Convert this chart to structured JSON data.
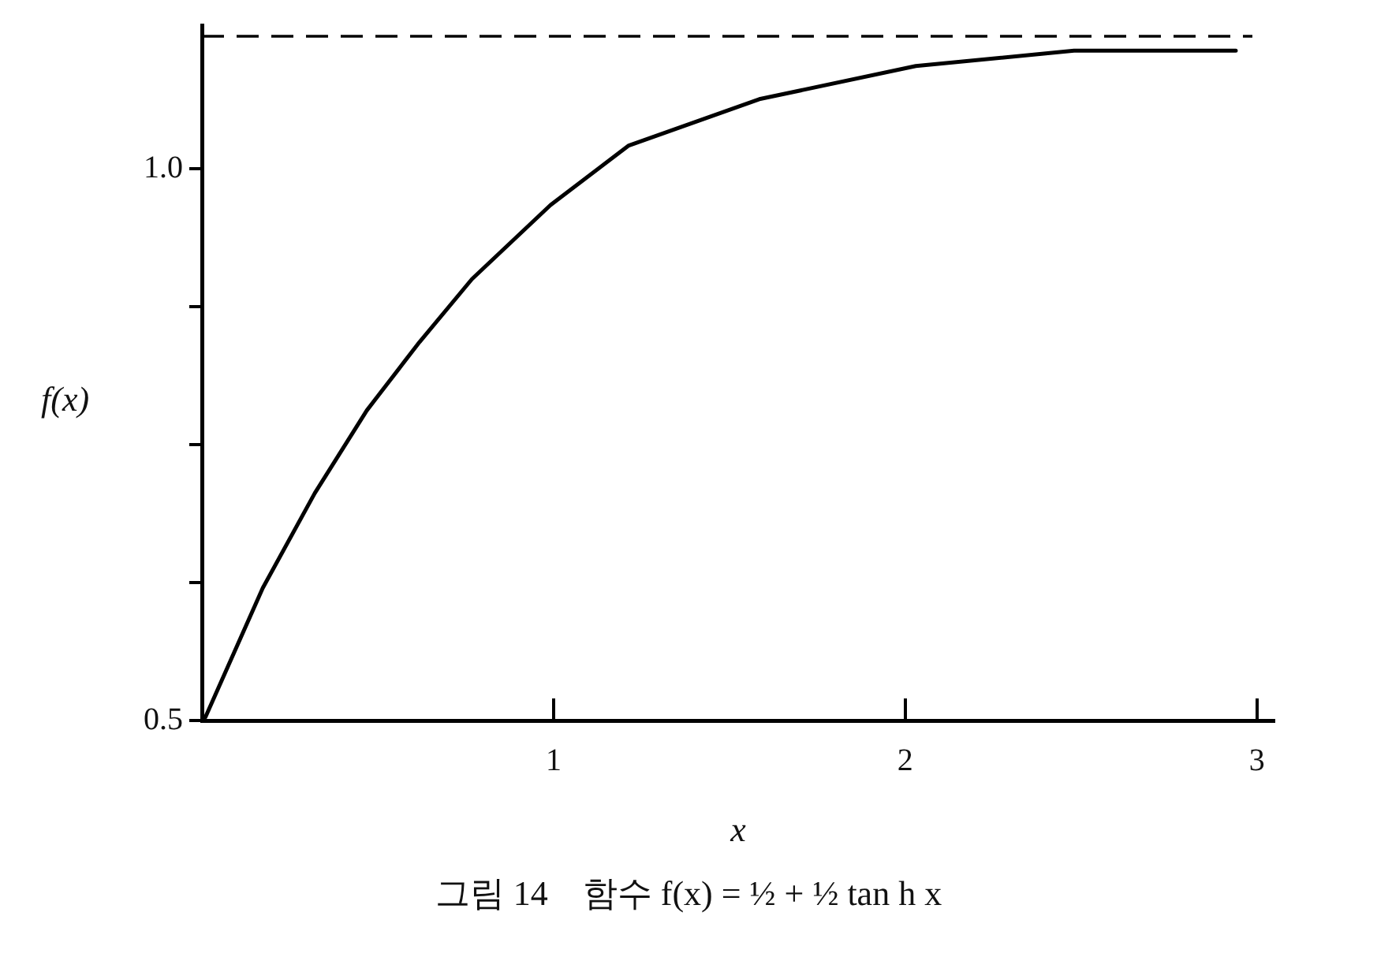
{
  "chart_data": {
    "type": "line",
    "title": "그림 14　함수 f(x) = ½ + ½ tan h x",
    "xlabel": "x",
    "ylabel": "f(x)",
    "x": [
      0,
      0.01,
      0.173,
      0.321,
      0.469,
      0.619,
      0.768,
      0.991,
      1.214,
      1.585,
      2.03,
      2.48,
      2.94
    ],
    "series": [
      {
        "color": "#000000",
        "values": [
          0.5,
          0.503,
          0.62,
          0.706,
          0.781,
          0.843,
          0.9,
          0.967,
          1.021,
          1.063,
          1.093,
          1.107,
          1.107
        ]
      }
    ],
    "xlim": [
      0,
      3.05
    ],
    "ylim": [
      0.5,
      1.13
    ],
    "xticks": [
      1,
      2,
      3
    ],
    "yticks": [
      {
        "value": 0.5,
        "label": "0.5"
      },
      {
        "value": 0.625,
        "label": null
      },
      {
        "value": 0.75,
        "label": null
      },
      {
        "value": 0.875,
        "label": null
      },
      {
        "value": 1.0,
        "label": "1.0"
      }
    ],
    "ref_lines": [
      {
        "axis": "y",
        "value": 1.12,
        "color": "#000000",
        "line_style": "dashed"
      }
    ],
    "grid": false,
    "legend": false,
    "marker": "none",
    "line_style": "solid"
  }
}
